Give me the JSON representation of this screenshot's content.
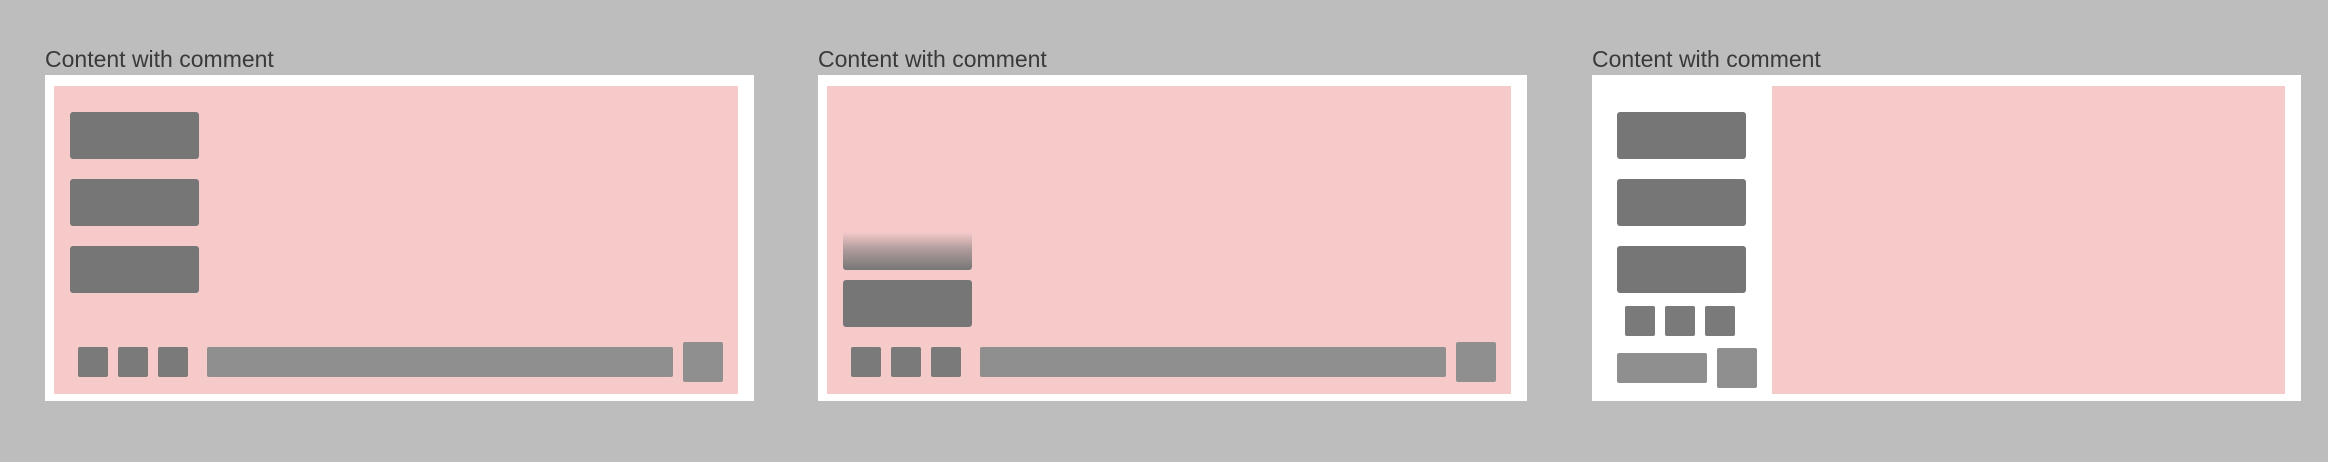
{
  "colors": {
    "background": "#bdbdbd",
    "frame": "#ffffff",
    "canvas": "#f7caca",
    "comment_block": "#767676",
    "input_bar": "#8f8f8f"
  },
  "variants": [
    {
      "label": "Content with comment",
      "layout": "comments-overlaid-top",
      "comment_count": 3,
      "toolbar_icon_count": 3
    },
    {
      "label": "Content with comment",
      "layout": "comments-overlaid-bottom-with-fade",
      "comment_count": 2,
      "toolbar_icon_count": 3
    },
    {
      "label": "Content with comment",
      "layout": "comments-side-panel",
      "comment_count": 3,
      "toolbar_icon_count": 3
    }
  ]
}
